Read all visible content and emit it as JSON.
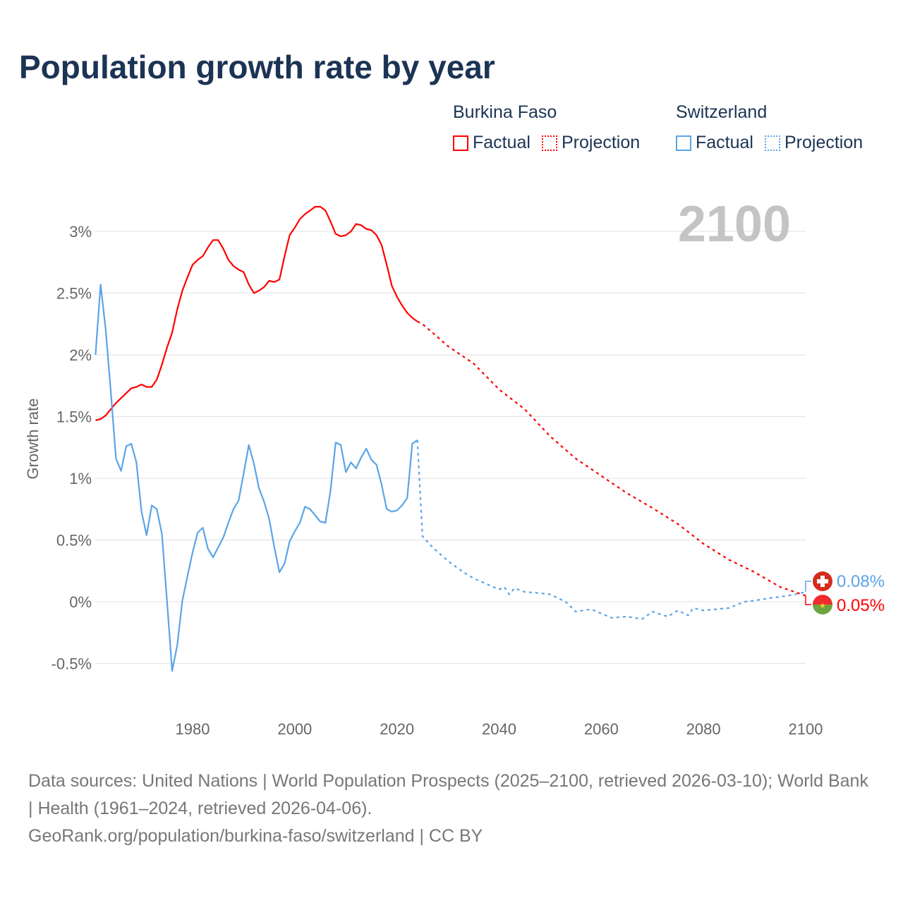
{
  "chart_data": {
    "type": "line",
    "title": "Population growth rate by year",
    "ylabel": "Growth rate",
    "xlabel": "",
    "year_watermark": "2100",
    "ylim": [
      -0.75,
      3.4
    ],
    "xlim": [
      1961,
      2100
    ],
    "yticks": [
      -0.5,
      0,
      0.5,
      1,
      1.5,
      2,
      2.5,
      3
    ],
    "ytick_labels": [
      "-0.5%",
      "0%",
      "0.5%",
      "1%",
      "1.5%",
      "2%",
      "2.5%",
      "3%"
    ],
    "xticks": [
      1980,
      2000,
      2020,
      2040,
      2060,
      2080,
      2100
    ],
    "xtick_labels": [
      "1980",
      "2000",
      "2020",
      "2040",
      "2060",
      "2080",
      "2100"
    ],
    "grid": true,
    "legend": {
      "placement": "top-right",
      "factual_label": "Factual",
      "projection_label": "Projection"
    },
    "series": [
      {
        "name": "Burkina Faso",
        "color": "#ff0000",
        "end_label": "0.05%",
        "factual": {
          "x": [
            1961,
            1962,
            1963,
            1964,
            1965,
            1966,
            1967,
            1968,
            1969,
            1970,
            1971,
            1972,
            1973,
            1974,
            1975,
            1976,
            1977,
            1978,
            1979,
            1980,
            1981,
            1982,
            1983,
            1984,
            1985,
            1986,
            1987,
            1988,
            1989,
            1990,
            1991,
            1992,
            1993,
            1994,
            1995,
            1996,
            1997,
            1998,
            1999,
            2000,
            2001,
            2002,
            2003,
            2004,
            2005,
            2006,
            2007,
            2008,
            2009,
            2010,
            2011,
            2012,
            2013,
            2014,
            2015,
            2016,
            2017,
            2018,
            2019,
            2020,
            2021,
            2022,
            2023,
            2024
          ],
          "y": [
            1.47,
            1.48,
            1.51,
            1.56,
            1.61,
            1.65,
            1.69,
            1.73,
            1.74,
            1.76,
            1.74,
            1.74,
            1.8,
            1.92,
            2.06,
            2.18,
            2.37,
            2.52,
            2.63,
            2.73,
            2.77,
            2.8,
            2.87,
            2.93,
            2.93,
            2.86,
            2.77,
            2.72,
            2.69,
            2.67,
            2.57,
            2.5,
            2.52,
            2.55,
            2.6,
            2.59,
            2.61,
            2.8,
            2.97,
            3.03,
            3.1,
            3.14,
            3.17,
            3.2,
            3.2,
            3.17,
            3.08,
            2.98,
            2.96,
            2.97,
            3.0,
            3.06,
            3.05,
            3.02,
            3.01,
            2.97,
            2.89,
            2.73,
            2.56,
            2.47,
            2.4,
            2.34,
            2.3,
            2.27
          ]
        },
        "projection": {
          "x": [
            2024,
            2025,
            2030,
            2035,
            2040,
            2045,
            2050,
            2055,
            2060,
            2065,
            2070,
            2075,
            2080,
            2085,
            2090,
            2095,
            2100
          ],
          "y": [
            2.27,
            2.25,
            2.07,
            1.93,
            1.72,
            1.56,
            1.34,
            1.16,
            1.02,
            0.88,
            0.76,
            0.63,
            0.47,
            0.34,
            0.24,
            0.12,
            0.05
          ]
        }
      },
      {
        "name": "Switzerland",
        "color": "#5ba4e8",
        "end_label": "0.08%",
        "factual": {
          "x": [
            1961,
            1962,
            1963,
            1964,
            1965,
            1966,
            1967,
            1968,
            1969,
            1970,
            1971,
            1972,
            1973,
            1974,
            1975,
            1976,
            1977,
            1978,
            1979,
            1980,
            1981,
            1982,
            1983,
            1984,
            1985,
            1986,
            1987,
            1988,
            1989,
            1990,
            1991,
            1992,
            1993,
            1994,
            1995,
            1996,
            1997,
            1998,
            1999,
            2000,
            2001,
            2002,
            2003,
            2004,
            2005,
            2006,
            2007,
            2008,
            2009,
            2010,
            2011,
            2012,
            2013,
            2014,
            2015,
            2016,
            2017,
            2018,
            2019,
            2020,
            2021,
            2022,
            2023,
            2024
          ],
          "y": [
            2.0,
            2.57,
            2.2,
            1.7,
            1.16,
            1.06,
            1.26,
            1.28,
            1.13,
            0.73,
            0.54,
            0.78,
            0.75,
            0.55,
            0.0,
            -0.56,
            -0.35,
            0.01,
            0.21,
            0.4,
            0.56,
            0.6,
            0.43,
            0.36,
            0.44,
            0.52,
            0.64,
            0.75,
            0.82,
            1.04,
            1.27,
            1.12,
            0.92,
            0.81,
            0.67,
            0.44,
            0.24,
            0.31,
            0.49,
            0.57,
            0.64,
            0.77,
            0.75,
            0.7,
            0.65,
            0.64,
            0.9,
            1.29,
            1.27,
            1.05,
            1.13,
            1.08,
            1.17,
            1.24,
            1.15,
            1.11,
            0.95,
            0.75,
            0.73,
            0.74,
            0.78,
            0.84,
            1.28,
            1.31
          ]
        },
        "projection": {
          "x": [
            2024,
            2025,
            2027,
            2030,
            2033,
            2035,
            2040,
            2041,
            2042,
            2043,
            2045,
            2048,
            2050,
            2053,
            2055,
            2058,
            2062,
            2065,
            2068,
            2070,
            2073,
            2075,
            2077,
            2078,
            2080,
            2085,
            2088,
            2090,
            2093,
            2095,
            2098,
            2100
          ],
          "y": [
            1.31,
            0.53,
            0.44,
            0.33,
            0.24,
            0.19,
            0.1,
            0.12,
            0.06,
            0.11,
            0.08,
            0.07,
            0.06,
            0.0,
            -0.08,
            -0.06,
            -0.13,
            -0.12,
            -0.14,
            -0.08,
            -0.12,
            -0.07,
            -0.11,
            -0.05,
            -0.07,
            -0.05,
            0.0,
            0.01,
            0.03,
            0.04,
            0.06,
            0.08
          ]
        }
      }
    ]
  },
  "footer": {
    "sources": "Data sources: United Nations | World Population Prospects (2025–2100, retrieved 2026-03-10); World Bank | Health (1961–2024, retrieved 2026-04-06).",
    "link": "GeoRank.org/population/burkina-faso/switzerland | CC BY"
  }
}
